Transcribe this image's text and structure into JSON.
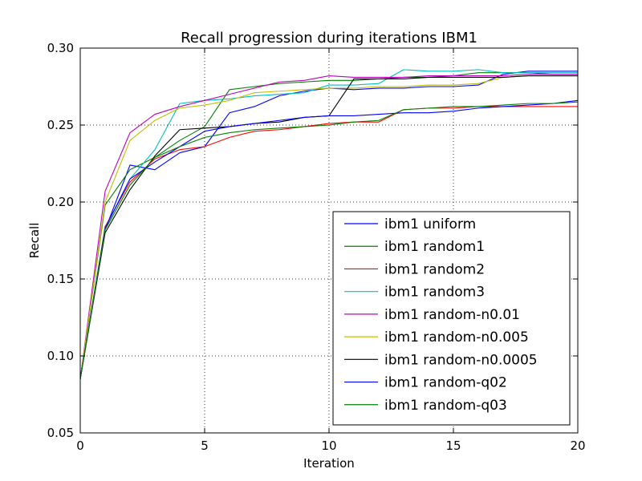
{
  "chart_data": {
    "type": "line",
    "title": "Recall progression during iterations IBM1",
    "xlabel": "Iteration",
    "ylabel": "Recall",
    "xlim": [
      0,
      20
    ],
    "ylim": [
      0.05,
      0.3
    ],
    "xticks": [
      0,
      5,
      10,
      15,
      20
    ],
    "yticks": [
      0.05,
      0.1,
      0.15,
      0.2,
      0.25,
      0.3
    ],
    "xtick_labels": [
      "0",
      "5",
      "10",
      "15",
      "20"
    ],
    "ytick_labels": [
      "0.05",
      "0.10",
      "0.15",
      "0.20",
      "0.25",
      "0.30"
    ],
    "grid": true,
    "legend_position": "lower-right",
    "x": [
      0,
      1,
      2,
      3,
      4,
      5,
      6,
      7,
      8,
      9,
      10,
      11,
      12,
      13,
      14,
      15,
      16,
      17,
      18,
      19,
      20
    ],
    "series": [
      {
        "name": "ibm1 uniform",
        "color": "#0000ff",
        "values": [
          0.085,
          0.182,
          0.224,
          0.221,
          0.232,
          0.236,
          0.258,
          0.262,
          0.269,
          0.272,
          0.274,
          0.273,
          0.274,
          0.274,
          0.275,
          0.275,
          0.276,
          0.283,
          0.285,
          0.285,
          0.285
        ]
      },
      {
        "name": "ibm1 random1",
        "color": "#008000",
        "values": [
          0.085,
          0.198,
          0.221,
          0.229,
          0.24,
          0.249,
          0.273,
          0.275,
          0.277,
          0.278,
          0.279,
          0.279,
          0.28,
          0.281,
          0.281,
          0.282,
          0.284,
          0.284,
          0.284,
          0.283,
          0.283
        ]
      },
      {
        "name": "ibm1 random2",
        "color": "#ff0000",
        "values": [
          0.085,
          0.184,
          0.213,
          0.228,
          0.234,
          0.236,
          0.242,
          0.246,
          0.247,
          0.249,
          0.251,
          0.252,
          0.252,
          0.26,
          0.261,
          0.261,
          0.262,
          0.262,
          0.262,
          0.262,
          0.262
        ]
      },
      {
        "name": "ibm1 random3",
        "color": "#00bfbf",
        "values": [
          0.085,
          0.183,
          0.215,
          0.234,
          0.264,
          0.266,
          0.267,
          0.269,
          0.27,
          0.271,
          0.276,
          0.276,
          0.277,
          0.286,
          0.285,
          0.285,
          0.286,
          0.284,
          0.284,
          0.284,
          0.284
        ]
      },
      {
        "name": "ibm1 random-n0.01",
        "color": "#bf00bf",
        "values": [
          0.085,
          0.207,
          0.245,
          0.257,
          0.262,
          0.266,
          0.27,
          0.274,
          0.278,
          0.279,
          0.282,
          0.281,
          0.281,
          0.281,
          0.282,
          0.282,
          0.282,
          0.282,
          0.283,
          0.283,
          0.283
        ]
      },
      {
        "name": "ibm1 random-n0.005",
        "color": "#bfbf00",
        "values": [
          0.085,
          0.2,
          0.24,
          0.253,
          0.261,
          0.263,
          0.266,
          0.271,
          0.272,
          0.273,
          0.274,
          0.274,
          0.275,
          0.275,
          0.276,
          0.276,
          0.277,
          0.281,
          0.282,
          0.282,
          0.282
        ]
      },
      {
        "name": "ibm1 random-n0.0005",
        "color": "#000000",
        "values": [
          0.085,
          0.18,
          0.208,
          0.23,
          0.247,
          0.248,
          0.249,
          0.251,
          0.252,
          0.255,
          0.256,
          0.28,
          0.28,
          0.28,
          0.281,
          0.281,
          0.281,
          0.281,
          0.282,
          0.282,
          0.282
        ]
      },
      {
        "name": "ibm1 random-q02",
        "color": "#0000ff",
        "values": [
          0.085,
          0.183,
          0.215,
          0.226,
          0.236,
          0.246,
          0.249,
          0.251,
          0.253,
          0.255,
          0.256,
          0.256,
          0.257,
          0.258,
          0.258,
          0.259,
          0.261,
          0.262,
          0.263,
          0.264,
          0.266
        ]
      },
      {
        "name": "ibm1 random-q03",
        "color": "#008000",
        "values": [
          0.085,
          0.182,
          0.211,
          0.229,
          0.236,
          0.242,
          0.245,
          0.247,
          0.248,
          0.249,
          0.25,
          0.252,
          0.253,
          0.26,
          0.261,
          0.262,
          0.262,
          0.263,
          0.264,
          0.264,
          0.265
        ]
      }
    ]
  }
}
